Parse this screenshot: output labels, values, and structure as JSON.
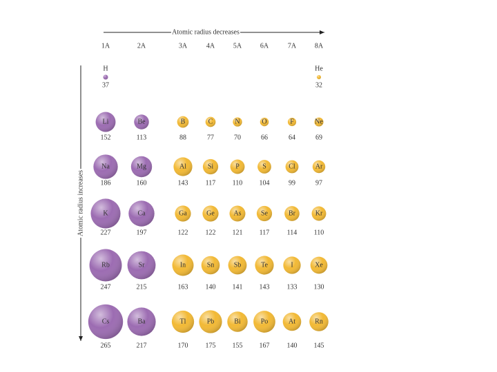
{
  "top_arrow_label": "Atomic radius decreases",
  "side_arrow_label": "Atomic radius increases",
  "groups": [
    {
      "label": "1A",
      "color": "#9c6cb2"
    },
    {
      "label": "2A",
      "color": "#9c6cb2"
    },
    {
      "label": "3A",
      "color": "#f2b935"
    },
    {
      "label": "4A",
      "color": "#f2b935"
    },
    {
      "label": "5A",
      "color": "#f2b935"
    },
    {
      "label": "6A",
      "color": "#f2b935"
    },
    {
      "label": "7A",
      "color": "#f2b935"
    },
    {
      "label": "8A",
      "color": "#f2b935"
    }
  ],
  "rows": [
    [
      {
        "group": "1A",
        "symbol": "H",
        "radius": 37
      },
      {
        "group": "8A",
        "symbol": "He",
        "radius": 32
      }
    ],
    [
      {
        "group": "1A",
        "symbol": "Li",
        "radius": 152
      },
      {
        "group": "2A",
        "symbol": "Be",
        "radius": 113
      },
      {
        "group": "3A",
        "symbol": "B",
        "radius": 88
      },
      {
        "group": "4A",
        "symbol": "C",
        "radius": 77
      },
      {
        "group": "5A",
        "symbol": "N",
        "radius": 70
      },
      {
        "group": "6A",
        "symbol": "O",
        "radius": 66
      },
      {
        "group": "7A",
        "symbol": "F",
        "radius": 64
      },
      {
        "group": "8A",
        "symbol": "Ne",
        "radius": 69
      }
    ],
    [
      {
        "group": "1A",
        "symbol": "Na",
        "radius": 186
      },
      {
        "group": "2A",
        "symbol": "Mg",
        "radius": 160
      },
      {
        "group": "3A",
        "symbol": "Al",
        "radius": 143
      },
      {
        "group": "4A",
        "symbol": "Si",
        "radius": 117
      },
      {
        "group": "5A",
        "symbol": "P",
        "radius": 110
      },
      {
        "group": "6A",
        "symbol": "S",
        "radius": 104
      },
      {
        "group": "7A",
        "symbol": "Cl",
        "radius": 99
      },
      {
        "group": "8A",
        "symbol": "Ar",
        "radius": 97
      }
    ],
    [
      {
        "group": "1A",
        "symbol": "K",
        "radius": 227
      },
      {
        "group": "2A",
        "symbol": "Ca",
        "radius": 197
      },
      {
        "group": "3A",
        "symbol": "Ga",
        "radius": 122
      },
      {
        "group": "4A",
        "symbol": "Ge",
        "radius": 122
      },
      {
        "group": "5A",
        "symbol": "As",
        "radius": 121
      },
      {
        "group": "6A",
        "symbol": "Se",
        "radius": 117
      },
      {
        "group": "7A",
        "symbol": "Br",
        "radius": 114
      },
      {
        "group": "8A",
        "symbol": "Kr",
        "radius": 110
      }
    ],
    [
      {
        "group": "1A",
        "symbol": "Rb",
        "radius": 247
      },
      {
        "group": "2A",
        "symbol": "Sr",
        "radius": 215
      },
      {
        "group": "3A",
        "symbol": "In",
        "radius": 163
      },
      {
        "group": "4A",
        "symbol": "Sn",
        "radius": 140
      },
      {
        "group": "5A",
        "symbol": "Sb",
        "radius": 141
      },
      {
        "group": "6A",
        "symbol": "Te",
        "radius": 143
      },
      {
        "group": "7A",
        "symbol": "I",
        "radius": 133
      },
      {
        "group": "8A",
        "symbol": "Xe",
        "radius": 130
      }
    ],
    [
      {
        "group": "1A",
        "symbol": "Cs",
        "radius": 265
      },
      {
        "group": "2A",
        "symbol": "Ba",
        "radius": 217
      },
      {
        "group": "3A",
        "symbol": "Tl",
        "radius": 170
      },
      {
        "group": "4A",
        "symbol": "Pb",
        "radius": 175
      },
      {
        "group": "5A",
        "symbol": "Bi",
        "radius": 155
      },
      {
        "group": "6A",
        "symbol": "Po",
        "radius": 167
      },
      {
        "group": "7A",
        "symbol": "At",
        "radius": 140
      },
      {
        "group": "8A",
        "symbol": "Rn",
        "radius": 145
      }
    ]
  ]
}
